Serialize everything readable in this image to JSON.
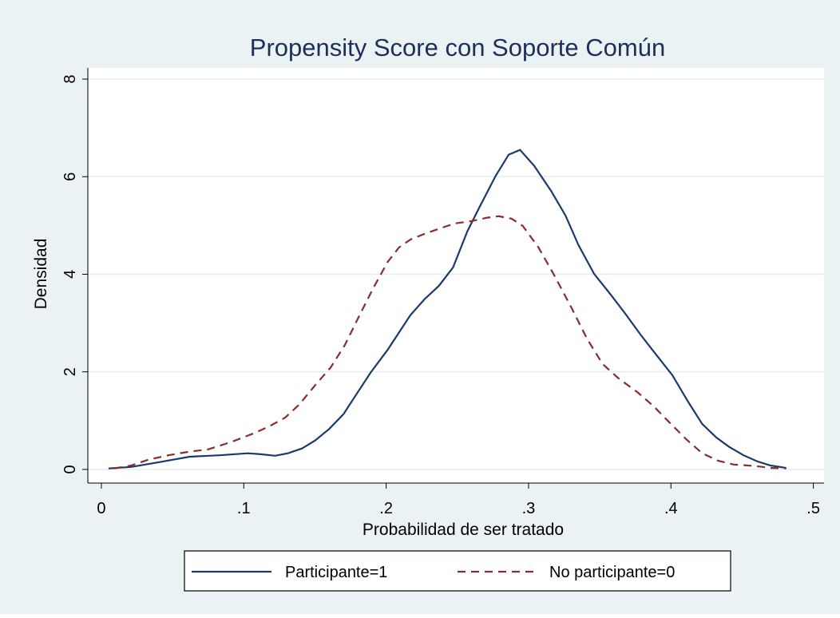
{
  "chart_data": {
    "type": "line",
    "title": "Propensity Score con Soporte Común",
    "x_label": "Probabilidad de ser tratado",
    "y_label": "Densidad",
    "xlim": [
      -0.0095,
      0.5075
    ],
    "ylim": [
      -0.28,
      8.23
    ],
    "xticks": [
      0,
      {
        "value": 0.1,
        "label": ".1"
      },
      {
        "value": 0.2,
        "label": ".2"
      },
      {
        "value": 0.3,
        "label": ".3"
      },
      {
        "value": 0.4,
        "label": ".4"
      },
      {
        "value": 0.5,
        "label": ".5"
      }
    ],
    "yticks": [
      0,
      2,
      4,
      6,
      8
    ],
    "grid": true,
    "legend": "bottom",
    "series": [
      {
        "name": "Participante=1",
        "color": "#1a3a6b",
        "dash": false,
        "x": [
          0.005,
          0.021,
          0.041,
          0.062,
          0.083,
          0.103,
          0.112,
          0.122,
          0.131,
          0.141,
          0.15,
          0.16,
          0.17,
          0.178,
          0.189,
          0.201,
          0.217,
          0.227,
          0.237,
          0.247,
          0.257,
          0.266,
          0.277,
          0.286,
          0.294,
          0.304,
          0.316,
          0.326,
          0.335,
          0.346,
          0.358,
          0.368,
          0.379,
          0.388,
          0.401,
          0.412,
          0.422,
          0.432,
          0.441,
          0.451,
          0.461,
          0.47,
          0.481
        ],
        "values": [
          0.02,
          0.05,
          0.15,
          0.26,
          0.29,
          0.33,
          0.31,
          0.28,
          0.33,
          0.43,
          0.59,
          0.83,
          1.13,
          1.49,
          1.98,
          2.45,
          3.16,
          3.49,
          3.76,
          4.14,
          4.88,
          5.4,
          6.02,
          6.45,
          6.55,
          6.22,
          5.7,
          5.2,
          4.6,
          4.01,
          3.57,
          3.19,
          2.75,
          2.41,
          1.93,
          1.39,
          0.93,
          0.65,
          0.46,
          0.29,
          0.16,
          0.08,
          0.03
        ]
      },
      {
        "name": "No participante=0",
        "color": "#8b2c2c",
        "dash": true,
        "x": [
          0.009,
          0.021,
          0.033,
          0.047,
          0.061,
          0.075,
          0.091,
          0.108,
          0.119,
          0.129,
          0.139,
          0.15,
          0.161,
          0.171,
          0.181,
          0.191,
          0.201,
          0.209,
          0.217,
          0.227,
          0.237,
          0.248,
          0.26,
          0.271,
          0.279,
          0.288,
          0.296,
          0.307,
          0.318,
          0.33,
          0.341,
          0.352,
          0.363,
          0.377,
          0.388,
          0.399,
          0.411,
          0.422,
          0.433,
          0.444,
          0.459,
          0.47,
          0.481
        ],
        "values": [
          0.02,
          0.08,
          0.2,
          0.29,
          0.36,
          0.41,
          0.56,
          0.75,
          0.9,
          1.06,
          1.33,
          1.72,
          2.09,
          2.55,
          3.14,
          3.72,
          4.25,
          4.55,
          4.71,
          4.83,
          4.93,
          5.04,
          5.09,
          5.16,
          5.19,
          5.14,
          4.99,
          4.55,
          3.98,
          3.32,
          2.68,
          2.16,
          1.87,
          1.57,
          1.29,
          0.96,
          0.61,
          0.33,
          0.18,
          0.1,
          0.07,
          0.03,
          0.02
        ]
      }
    ]
  }
}
